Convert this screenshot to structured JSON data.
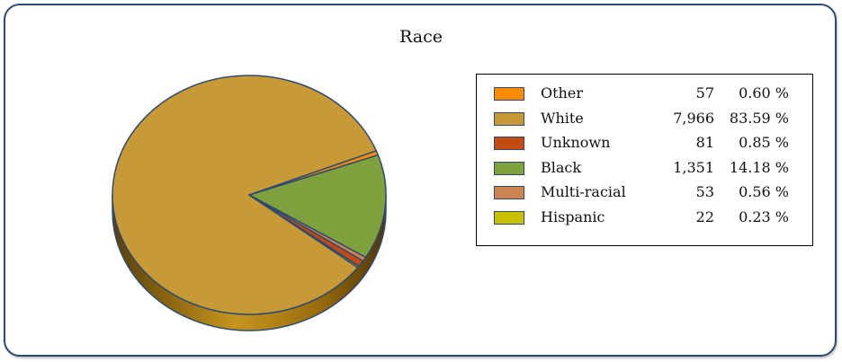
{
  "chart_data": {
    "type": "pie",
    "title": "Race",
    "slices": [
      {
        "label": "Other",
        "count_text": "57",
        "percent_text": "0.60 %",
        "value": 0.6,
        "color": "#ff8c00"
      },
      {
        "label": "White",
        "count_text": "7,966",
        "percent_text": "83.59 %",
        "value": 83.59,
        "color": "#c89a36"
      },
      {
        "label": "Unknown",
        "count_text": "81",
        "percent_text": "0.85 %",
        "value": 0.85,
        "color": "#c44a10"
      },
      {
        "label": "Black",
        "count_text": "1,351",
        "percent_text": "14.18 %",
        "value": 14.18,
        "color": "#7da13d"
      },
      {
        "label": "Multi-racial",
        "count_text": "53",
        "percent_text": "0.56 %",
        "value": 0.56,
        "color": "#cc8450"
      },
      {
        "label": "Hispanic",
        "count_text": "22",
        "percent_text": "0.23 %",
        "value": 0.23,
        "color": "#c8c000"
      }
    ],
    "legend_position": "right"
  }
}
